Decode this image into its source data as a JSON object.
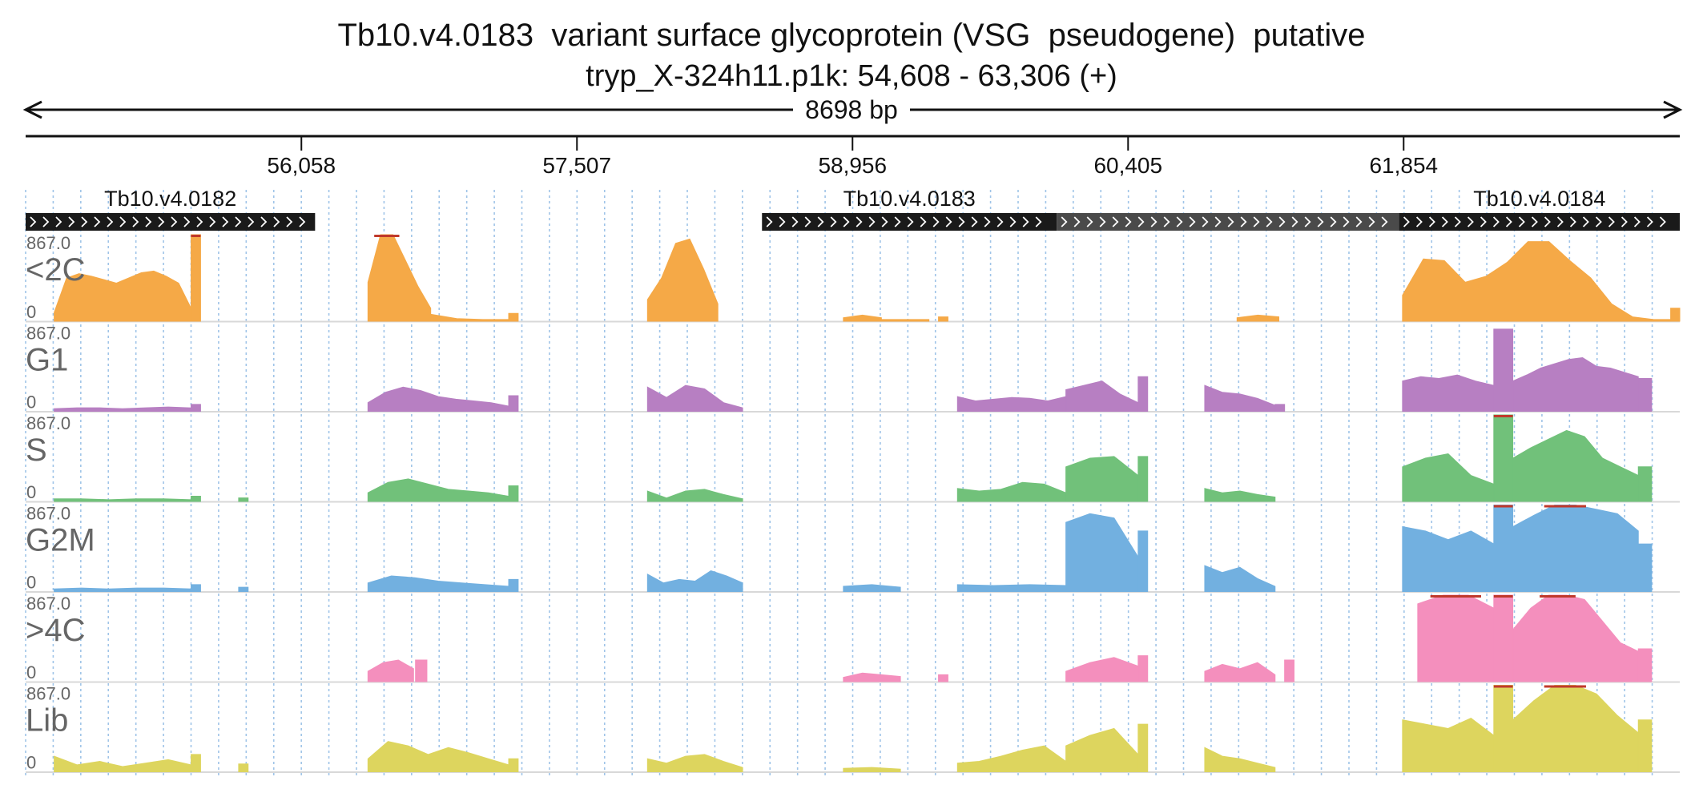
{
  "header": {
    "title": "Tb10.v4.0183  variant surface glycoprotein (VSG  pseudogene)  putative",
    "subtitle": "tryp_X-324h11.p1k: 54,608 - 63,306 (+)"
  },
  "colors": {
    "axis": "#111111",
    "gene": "#1a1a1a",
    "gene_alt": "#4a4a4a",
    "grid": "#9fc4e8",
    "overflow": "#c0392b",
    "track_label": "#666666"
  },
  "chart_data": {
    "type": "area",
    "title": "Tb10.v4.0183  variant surface glycoprotein (VSG  pseudogene)  putative",
    "subtitle": "tryp_X-324h11.p1k: 54,608 - 63,306 (+)",
    "span_label": "8698 bp",
    "xlim": [
      54608,
      63306
    ],
    "xticks": [
      56058,
      57507,
      58956,
      60405,
      61854
    ],
    "xtick_labels": [
      "56,058",
      "57,507",
      "58,956",
      "60,405",
      "61,854"
    ],
    "ylim": [
      0,
      867.0
    ],
    "ymax_label": "867.0",
    "ymin_label": "0",
    "grid": true,
    "genes": [
      {
        "name": "Tb10.v4.0182",
        "start": 54608,
        "end": 56130,
        "strand": "+",
        "style": "solid"
      },
      {
        "name": "Tb10.v4.0183",
        "start": 58480,
        "end": 60030,
        "strand": "+",
        "style": "solid"
      },
      {
        "name": "",
        "start": 60030,
        "end": 61830,
        "strand": "+",
        "style": "alt"
      },
      {
        "name": "Tb10.v4.0184",
        "start": 61830,
        "end": 63306,
        "strand": "+",
        "style": "solid"
      }
    ],
    "series": [
      {
        "name": "<2C",
        "color": "#f5a947",
        "segments": [
          {
            "x0": 54758,
            "x1": 55478,
            "profile": [
              0.1,
              0.5,
              0.55,
              0.52,
              0.48,
              0.44,
              0.5,
              0.56,
              0.58,
              0.52,
              0.44,
              0.15
            ]
          },
          {
            "x0": 55478,
            "x1": 55528,
            "profile": [
              1.0
            ]
          },
          {
            "x0": 56408,
            "x1": 56738,
            "profile": [
              0.45,
              1.0,
              1.0,
              0.7,
              0.4,
              0.15
            ]
          },
          {
            "x0": 56738,
            "x1": 57148,
            "profile": [
              0.08,
              0.03,
              0.02,
              0.02
            ]
          },
          {
            "x0": 57148,
            "x1": 57198,
            "profile": [
              0.09
            ]
          },
          {
            "x0": 57878,
            "x1": 58248,
            "profile": [
              0.25,
              0.5,
              0.9,
              0.95,
              0.6,
              0.2
            ]
          },
          {
            "x0": 58908,
            "x1": 59108,
            "profile": [
              0.04,
              0.07,
              0.04
            ]
          },
          {
            "x0": 59108,
            "x1": 59358,
            "profile": [
              0.02,
              0.02
            ]
          },
          {
            "x0": 59408,
            "x1": 59458,
            "profile": [
              0.05
            ]
          },
          {
            "x0": 60978,
            "x1": 61198,
            "profile": [
              0.04,
              0.07,
              0.05
            ]
          },
          {
            "x0": 61848,
            "x1": 63278,
            "profile": [
              0.3,
              0.72,
              0.7,
              0.45,
              0.52,
              0.68,
              0.92,
              0.92,
              0.7,
              0.5,
              0.2,
              0.05,
              0.02,
              0.02
            ]
          },
          {
            "x0": 63258,
            "x1": 63306,
            "profile": [
              0.15
            ]
          }
        ]
      },
      {
        "name": "G1",
        "color": "#b77fc2",
        "segments": [
          {
            "x0": 54758,
            "x1": 55478,
            "profile": [
              0.03,
              0.04,
              0.04,
              0.03,
              0.04,
              0.05,
              0.04
            ]
          },
          {
            "x0": 55478,
            "x1": 55528,
            "profile": [
              0.08
            ]
          },
          {
            "x0": 56408,
            "x1": 57148,
            "profile": [
              0.1,
              0.22,
              0.28,
              0.24,
              0.17,
              0.14,
              0.12,
              0.1,
              0.06
            ]
          },
          {
            "x0": 57148,
            "x1": 57198,
            "profile": [
              0.18
            ]
          },
          {
            "x0": 57878,
            "x1": 58378,
            "profile": [
              0.28,
              0.16,
              0.3,
              0.26,
              0.1,
              0.04
            ]
          },
          {
            "x0": 59508,
            "x1": 60078,
            "profile": [
              0.17,
              0.12,
              0.14,
              0.16,
              0.15,
              0.12,
              0.17
            ]
          },
          {
            "x0": 60078,
            "x1": 60458,
            "profile": [
              0.25,
              0.3,
              0.35,
              0.2,
              0.1
            ]
          },
          {
            "x0": 60458,
            "x1": 60508,
            "profile": [
              0.4
            ]
          },
          {
            "x0": 60808,
            "x1": 61178,
            "profile": [
              0.3,
              0.22,
              0.2,
              0.15,
              0.07
            ]
          },
          {
            "x0": 61178,
            "x1": 61228,
            "profile": [
              0.08
            ]
          },
          {
            "x0": 61848,
            "x1": 62328,
            "profile": [
              0.35,
              0.4,
              0.38,
              0.42,
              0.35,
              0.3
            ]
          },
          {
            "x0": 62328,
            "x1": 62428,
            "profile": [
              0.95
            ]
          },
          {
            "x0": 62428,
            "x1": 63088,
            "profile": [
              0.35,
              0.42,
              0.5,
              0.55,
              0.6,
              0.62,
              0.52,
              0.5,
              0.45,
              0.4
            ]
          },
          {
            "x0": 63088,
            "x1": 63158,
            "profile": [
              0.38
            ]
          }
        ]
      },
      {
        "name": "S",
        "color": "#71c17a",
        "segments": [
          {
            "x0": 54758,
            "x1": 55478,
            "profile": [
              0.03,
              0.03,
              0.02,
              0.03,
              0.03,
              0.02
            ]
          },
          {
            "x0": 55478,
            "x1": 55528,
            "profile": [
              0.06
            ]
          },
          {
            "x0": 55728,
            "x1": 55778,
            "profile": [
              0.04
            ]
          },
          {
            "x0": 56408,
            "x1": 57148,
            "profile": [
              0.1,
              0.22,
              0.26,
              0.2,
              0.14,
              0.12,
              0.1,
              0.06
            ]
          },
          {
            "x0": 57148,
            "x1": 57198,
            "profile": [
              0.18
            ]
          },
          {
            "x0": 57878,
            "x1": 58378,
            "profile": [
              0.12,
              0.04,
              0.12,
              0.14,
              0.08,
              0.03
            ]
          },
          {
            "x0": 59508,
            "x1": 60078,
            "profile": [
              0.15,
              0.12,
              0.14,
              0.22,
              0.2,
              0.1
            ]
          },
          {
            "x0": 60078,
            "x1": 60458,
            "profile": [
              0.4,
              0.5,
              0.52,
              0.3
            ]
          },
          {
            "x0": 60458,
            "x1": 60508,
            "profile": [
              0.52
            ]
          },
          {
            "x0": 60808,
            "x1": 61178,
            "profile": [
              0.15,
              0.1,
              0.12,
              0.08,
              0.05
            ]
          },
          {
            "x0": 61848,
            "x1": 62328,
            "profile": [
              0.4,
              0.5,
              0.55,
              0.3,
              0.2
            ]
          },
          {
            "x0": 62328,
            "x1": 62428,
            "profile": [
              1.0
            ]
          },
          {
            "x0": 62428,
            "x1": 63088,
            "profile": [
              0.5,
              0.62,
              0.72,
              0.82,
              0.75,
              0.5,
              0.4,
              0.3
            ]
          },
          {
            "x0": 63088,
            "x1": 63158,
            "profile": [
              0.4
            ]
          }
        ]
      },
      {
        "name": "G2M",
        "color": "#72b0e0",
        "segments": [
          {
            "x0": 54758,
            "x1": 55478,
            "profile": [
              0.03,
              0.04,
              0.03,
              0.04,
              0.04,
              0.03
            ]
          },
          {
            "x0": 55478,
            "x1": 55528,
            "profile": [
              0.08
            ]
          },
          {
            "x0": 55728,
            "x1": 55778,
            "profile": [
              0.05
            ]
          },
          {
            "x0": 56408,
            "x1": 57148,
            "profile": [
              0.1,
              0.18,
              0.16,
              0.12,
              0.1,
              0.08,
              0.06
            ]
          },
          {
            "x0": 57148,
            "x1": 57198,
            "profile": [
              0.14
            ]
          },
          {
            "x0": 57878,
            "x1": 58378,
            "profile": [
              0.2,
              0.1,
              0.14,
              0.12,
              0.24,
              0.18,
              0.1
            ]
          },
          {
            "x0": 58908,
            "x1": 59208,
            "profile": [
              0.06,
              0.08,
              0.05
            ]
          },
          {
            "x0": 59508,
            "x1": 60078,
            "profile": [
              0.08,
              0.07,
              0.08,
              0.07
            ]
          },
          {
            "x0": 60078,
            "x1": 60458,
            "profile": [
              0.8,
              0.9,
              0.85,
              0.4
            ]
          },
          {
            "x0": 60458,
            "x1": 60508,
            "profile": [
              0.7
            ]
          },
          {
            "x0": 60808,
            "x1": 61178,
            "profile": [
              0.3,
              0.22,
              0.28,
              0.15,
              0.06
            ]
          },
          {
            "x0": 61848,
            "x1": 62328,
            "profile": [
              0.75,
              0.7,
              0.6,
              0.7,
              0.55
            ]
          },
          {
            "x0": 62328,
            "x1": 62428,
            "profile": [
              1.0
            ]
          },
          {
            "x0": 62428,
            "x1": 63088,
            "profile": [
              0.75,
              0.88,
              1.0,
              1.0,
              0.95,
              0.9,
              0.7
            ]
          },
          {
            "x0": 63088,
            "x1": 63158,
            "profile": [
              0.55
            ]
          }
        ]
      },
      {
        "name": ">4C",
        "color": "#f48fbd",
        "segments": [
          {
            "x0": 56408,
            "x1": 56648,
            "profile": [
              0.12,
              0.22,
              0.25,
              0.15
            ]
          },
          {
            "x0": 56658,
            "x1": 56718,
            "profile": [
              0.25
            ]
          },
          {
            "x0": 58908,
            "x1": 59208,
            "profile": [
              0.05,
              0.1,
              0.08,
              0.06
            ]
          },
          {
            "x0": 59408,
            "x1": 59458,
            "profile": [
              0.08
            ]
          },
          {
            "x0": 60078,
            "x1": 60458,
            "profile": [
              0.12,
              0.22,
              0.28,
              0.18
            ]
          },
          {
            "x0": 60458,
            "x1": 60508,
            "profile": [
              0.3
            ]
          },
          {
            "x0": 60808,
            "x1": 61178,
            "profile": [
              0.12,
              0.2,
              0.15,
              0.22,
              0.08
            ]
          },
          {
            "x0": 61228,
            "x1": 61278,
            "profile": [
              0.25
            ]
          },
          {
            "x0": 61928,
            "x1": 62328,
            "profile": [
              0.9,
              1.0,
              1.0,
              0.85
            ]
          },
          {
            "x0": 62328,
            "x1": 62428,
            "profile": [
              1.0
            ]
          },
          {
            "x0": 62428,
            "x1": 63088,
            "profile": [
              0.6,
              0.85,
              1.0,
              1.0,
              0.95,
              0.7,
              0.45,
              0.35
            ]
          },
          {
            "x0": 63088,
            "x1": 63158,
            "profile": [
              0.38
            ]
          }
        ]
      },
      {
        "name": "Lib",
        "color": "#ddd55e",
        "segments": [
          {
            "x0": 54758,
            "x1": 55478,
            "profile": [
              0.18,
              0.08,
              0.12,
              0.06,
              0.1,
              0.14,
              0.08
            ]
          },
          {
            "x0": 55478,
            "x1": 55528,
            "profile": [
              0.2
            ]
          },
          {
            "x0": 55728,
            "x1": 55778,
            "profile": [
              0.09
            ]
          },
          {
            "x0": 56408,
            "x1": 57148,
            "profile": [
              0.15,
              0.35,
              0.3,
              0.2,
              0.28,
              0.22,
              0.15,
              0.08
            ]
          },
          {
            "x0": 57148,
            "x1": 57198,
            "profile": [
              0.15
            ]
          },
          {
            "x0": 57878,
            "x1": 58378,
            "profile": [
              0.15,
              0.1,
              0.18,
              0.2,
              0.12,
              0.05
            ]
          },
          {
            "x0": 58908,
            "x1": 59208,
            "profile": [
              0.04,
              0.05,
              0.03
            ]
          },
          {
            "x0": 59508,
            "x1": 60078,
            "profile": [
              0.1,
              0.12,
              0.18,
              0.25,
              0.3,
              0.12
            ]
          },
          {
            "x0": 60078,
            "x1": 60458,
            "profile": [
              0.3,
              0.42,
              0.5,
              0.2
            ]
          },
          {
            "x0": 60458,
            "x1": 60508,
            "profile": [
              0.55
            ]
          },
          {
            "x0": 60808,
            "x1": 61178,
            "profile": [
              0.28,
              0.18,
              0.15,
              0.1,
              0.05
            ]
          },
          {
            "x0": 61848,
            "x1": 62328,
            "profile": [
              0.6,
              0.55,
              0.5,
              0.62,
              0.42
            ]
          },
          {
            "x0": 62328,
            "x1": 62428,
            "profile": [
              1.0
            ]
          },
          {
            "x0": 62428,
            "x1": 63088,
            "profile": [
              0.6,
              0.82,
              1.0,
              1.0,
              0.9,
              0.65,
              0.45
            ]
          },
          {
            "x0": 63088,
            "x1": 63158,
            "profile": [
              0.6
            ]
          }
        ]
      }
    ]
  }
}
